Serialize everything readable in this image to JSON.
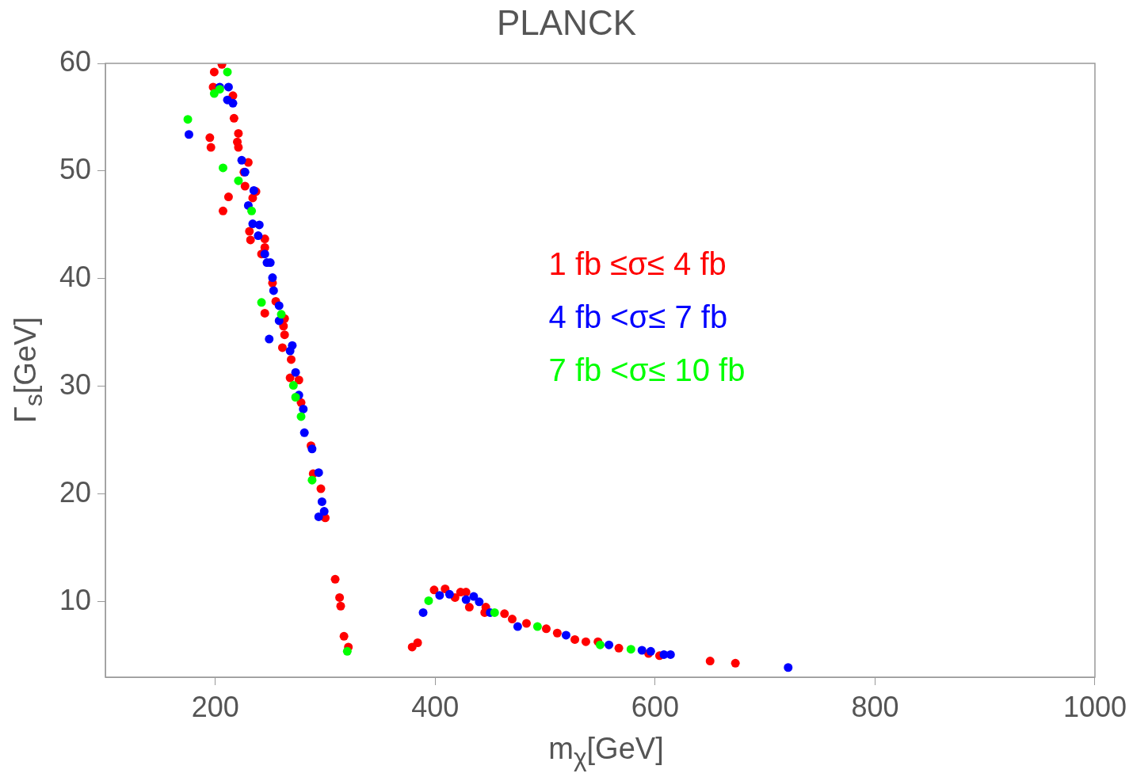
{
  "chart_data": {
    "type": "scatter",
    "title": "PLANCK",
    "xlabel": "m$_{χ}$[GeV]",
    "ylabel": "Γ$_{s}$[GeV]",
    "xlim": [
      100,
      1000
    ],
    "xticks": [
      200,
      400,
      600,
      800,
      1000
    ],
    "ylim": [
      3,
      60
    ],
    "yticks": [
      10,
      20,
      30,
      40,
      50,
      60
    ],
    "grid": false,
    "legend": "right",
    "marker": "circle",
    "series": [
      {
        "name": "1 fb ≤σ≤ 4 fb",
        "color": "#ff0000",
        "x": [
          206,
          199,
          198,
          216,
          217,
          221,
          195,
          220,
          196,
          221,
          230,
          226,
          227,
          237,
          234,
          212,
          207,
          231,
          232,
          245,
          245,
          242,
          252,
          255,
          245,
          263,
          262,
          263,
          261,
          269,
          268,
          276,
          278,
          287,
          289,
          296,
          300,
          309,
          313,
          314,
          317,
          321,
          379,
          384,
          399,
          409,
          418,
          423,
          428,
          431,
          446,
          445,
          463,
          470,
          483,
          501,
          511,
          527,
          537,
          548,
          567,
          594,
          604,
          650,
          673
        ],
        "values": [
          59.9,
          59.2,
          57.8,
          57.0,
          54.9,
          53.5,
          53.1,
          52.7,
          52.2,
          52.2,
          50.8,
          49.9,
          48.6,
          48.1,
          47.5,
          47.6,
          46.3,
          44.4,
          43.6,
          43.7,
          42.9,
          42.3,
          39.6,
          37.9,
          36.8,
          36.3,
          35.6,
          34.8,
          33.6,
          32.5,
          30.8,
          30.6,
          28.5,
          24.5,
          21.9,
          20.5,
          17.8,
          12.1,
          10.4,
          9.6,
          6.8,
          5.8,
          5.8,
          6.2,
          11.1,
          11.2,
          10.4,
          10.9,
          10.9,
          9.5,
          9.5,
          9.0,
          8.9,
          8.4,
          8.0,
          7.5,
          7.1,
          6.5,
          6.3,
          6.3,
          5.7,
          5.2,
          5.0,
          4.5,
          4.3
        ]
      },
      {
        "name": "4 fb <σ≤ 7 fb",
        "color": "#0000ff",
        "x": [
          204,
          212,
          211,
          216,
          176,
          224,
          227,
          235,
          230,
          234,
          240,
          239,
          245,
          247,
          250,
          252,
          253,
          258,
          258,
          249,
          270,
          268,
          273,
          276,
          280,
          281,
          288,
          294,
          297,
          299,
          294,
          389,
          404,
          413,
          428,
          435,
          440,
          450,
          475,
          519,
          558,
          588,
          596,
          608,
          614,
          721
        ],
        "values": [
          57.8,
          57.8,
          56.6,
          56.3,
          53.4,
          51.0,
          49.9,
          48.2,
          46.8,
          45.1,
          45.0,
          44.0,
          42.3,
          41.5,
          41.5,
          40.1,
          38.9,
          37.5,
          36.1,
          34.4,
          33.8,
          33.3,
          31.3,
          29.2,
          27.9,
          25.7,
          24.2,
          22.0,
          19.3,
          18.4,
          17.9,
          9.0,
          10.6,
          10.7,
          10.2,
          10.5,
          10.0,
          9.0,
          7.7,
          6.9,
          6.0,
          5.5,
          5.4,
          5.1,
          5.1,
          3.9
        ]
      },
      {
        "name": "7 fb <σ≤ 10 fb",
        "color": "#00ff00",
        "x": [
          211,
          204,
          199,
          175,
          207,
          221,
          233,
          242,
          260,
          271,
          273,
          278,
          288,
          320,
          394,
          454,
          493,
          550,
          578
        ],
        "values": [
          59.2,
          57.6,
          57.2,
          54.8,
          50.3,
          49.1,
          46.3,
          37.8,
          36.7,
          30.1,
          29.0,
          27.2,
          21.3,
          5.4,
          10.1,
          9.0,
          7.7,
          6.0,
          5.6
        ]
      }
    ]
  }
}
